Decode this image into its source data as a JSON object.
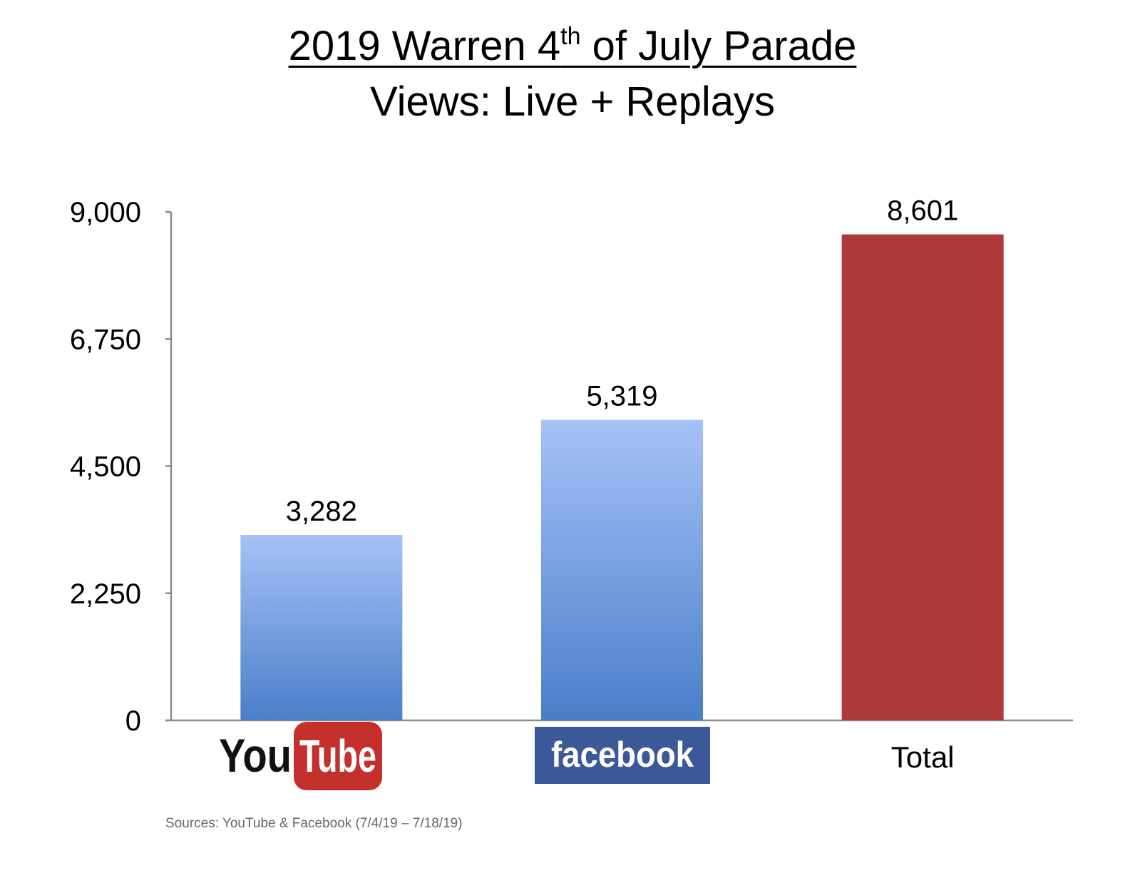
{
  "title": {
    "prefix": "2019 Warren 4",
    "superscript": "th",
    "suffix": " of July Parade",
    "subtitle": "Views: Live + Replays"
  },
  "source_note": "Sources: YouTube & Facebook (7/4/19 – 7/18/19)",
  "logos": {
    "youtube_you": "You",
    "youtube_tube": "Tube",
    "facebook": "facebook"
  },
  "colors": {
    "bar_gradient_top": "#a6c2f7",
    "bar_gradient_bottom": "#4a7ec8",
    "total_bar": "#ad3a38",
    "axis": "#8c8c8c",
    "youtube_red": "#c4302b",
    "facebook_blue": "#3b5998"
  },
  "chart_data": {
    "type": "bar",
    "title": "2019 Warren 4th of July Parade",
    "subtitle": "Views: Live + Replays",
    "categories": [
      "YouTube",
      "facebook",
      "Total"
    ],
    "category_labels_shown_as_logos": [
      "YouTube",
      "facebook"
    ],
    "values": [
      3282,
      5319,
      8601
    ],
    "value_labels": [
      "3,282",
      "5,319",
      "8,601"
    ],
    "ylim": [
      0,
      9000
    ],
    "yticks": [
      0,
      2250,
      4500,
      6750,
      9000
    ],
    "ytick_labels": [
      "0",
      "2,250",
      "4,500",
      "6,750",
      "9,000"
    ],
    "grid": false,
    "legend": "none",
    "bar_styles": [
      "blue-gradient",
      "blue-gradient",
      "red"
    ]
  }
}
